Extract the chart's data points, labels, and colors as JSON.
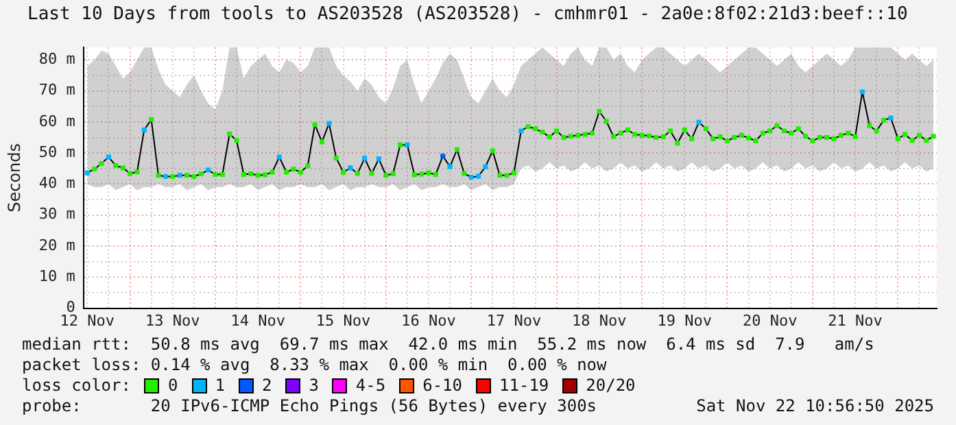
{
  "chart_data": {
    "type": "line",
    "title": "Last 10 Days from tools to AS203528 (AS203528) - cmhmr01 - 2a0e:8f02:21d3:beef::10",
    "ylabel": "Seconds",
    "legend_title": "loss color:",
    "legend": "bottom",
    "grid": true,
    "marker": "square",
    "annotations": [
      "median rtt:  50.8 ms avg  69.7 ms max  42.0 ms min  55.2 ms now  6.4 ms sd  7.9   am/s",
      "packet loss: 0.14 % avg  8.33 % max  0.00 % min  0.00 % now",
      "probe:       20 IPv6-ICMP Echo Pings (56 Bytes) every 300s",
      "Sat Nov 22 10:56:50 2025"
    ],
    "xlim": [
      "2025-11-12T10:56",
      "2025-11-22T10:56"
    ],
    "xticks": [
      {
        "value": "2025-11-12T12:00",
        "label": "12 Nov"
      },
      {
        "value": "2025-11-12T18:00",
        "label": null
      },
      {
        "value": "2025-11-13T00:00",
        "label": null
      },
      {
        "value": "2025-11-13T06:00",
        "label": null
      },
      {
        "value": "2025-11-13T12:00",
        "label": "13 Nov"
      },
      {
        "value": "2025-11-13T18:00",
        "label": null
      },
      {
        "value": "2025-11-14T00:00",
        "label": null
      },
      {
        "value": "2025-11-14T06:00",
        "label": null
      },
      {
        "value": "2025-11-14T12:00",
        "label": "14 Nov"
      },
      {
        "value": "2025-11-14T18:00",
        "label": null
      },
      {
        "value": "2025-11-15T00:00",
        "label": null
      },
      {
        "value": "2025-11-15T06:00",
        "label": null
      },
      {
        "value": "2025-11-15T12:00",
        "label": "15 Nov"
      },
      {
        "value": "2025-11-15T18:00",
        "label": null
      },
      {
        "value": "2025-11-16T00:00",
        "label": null
      },
      {
        "value": "2025-11-16T06:00",
        "label": null
      },
      {
        "value": "2025-11-16T12:00",
        "label": "16 Nov"
      },
      {
        "value": "2025-11-16T18:00",
        "label": null
      },
      {
        "value": "2025-11-17T00:00",
        "label": null
      },
      {
        "value": "2025-11-17T06:00",
        "label": null
      },
      {
        "value": "2025-11-17T12:00",
        "label": "17 Nov"
      },
      {
        "value": "2025-11-17T18:00",
        "label": null
      },
      {
        "value": "2025-11-18T00:00",
        "label": null
      },
      {
        "value": "2025-11-18T06:00",
        "label": null
      },
      {
        "value": "2025-11-18T12:00",
        "label": "18 Nov"
      },
      {
        "value": "2025-11-18T18:00",
        "label": null
      },
      {
        "value": "2025-11-19T00:00",
        "label": null
      },
      {
        "value": "2025-11-19T06:00",
        "label": null
      },
      {
        "value": "2025-11-19T12:00",
        "label": "19 Nov"
      },
      {
        "value": "2025-11-19T18:00",
        "label": null
      },
      {
        "value": "2025-11-20T00:00",
        "label": null
      },
      {
        "value": "2025-11-20T06:00",
        "label": null
      },
      {
        "value": "2025-11-20T12:00",
        "label": "20 Nov"
      },
      {
        "value": "2025-11-20T18:00",
        "label": null
      },
      {
        "value": "2025-11-21T00:00",
        "label": null
      },
      {
        "value": "2025-11-21T06:00",
        "label": null
      },
      {
        "value": "2025-11-21T12:00",
        "label": "21 Nov"
      },
      {
        "value": "2025-11-21T18:00",
        "label": null
      },
      {
        "value": "2025-11-22T00:00",
        "label": null
      },
      {
        "value": "2025-11-22T06:00",
        "label": null
      }
    ],
    "ylim": [
      0,
      84
    ],
    "yticks": [
      0,
      {
        "value": 5,
        "label": null
      },
      {
        "value": 10,
        "label": "10 m"
      },
      {
        "value": 15,
        "label": null
      },
      {
        "value": 20,
        "label": "20 m"
      },
      {
        "value": 25,
        "label": null
      },
      {
        "value": 30,
        "label": "30 m"
      },
      {
        "value": 35,
        "label": null
      },
      {
        "value": 40,
        "label": "40 m"
      },
      {
        "value": 45,
        "label": null
      },
      {
        "value": 50,
        "label": "50 m"
      },
      {
        "value": 55,
        "label": null
      },
      {
        "value": 60,
        "label": "60 m"
      },
      {
        "value": 65,
        "label": null
      },
      {
        "value": 70,
        "label": "70 m"
      },
      {
        "value": 75,
        "label": null
      },
      {
        "value": 80,
        "label": "80 m"
      }
    ],
    "x": [
      "2025-11-12T12:00",
      "2025-11-12T14:00",
      "2025-11-12T16:00",
      "2025-11-12T18:00",
      "2025-11-12T20:00",
      "2025-11-12T22:00",
      "2025-11-13T00:00",
      "2025-11-13T02:00",
      "2025-11-13T04:00",
      "2025-11-13T06:00",
      "2025-11-13T08:00",
      "2025-11-13T10:00",
      "2025-11-13T12:00",
      "2025-11-13T14:00",
      "2025-11-13T16:00",
      "2025-11-13T18:00",
      "2025-11-13T20:00",
      "2025-11-13T22:00",
      "2025-11-14T00:00",
      "2025-11-14T02:00",
      "2025-11-14T04:00",
      "2025-11-14T06:00",
      "2025-11-14T08:00",
      "2025-11-14T10:00",
      "2025-11-14T12:00",
      "2025-11-14T14:00",
      "2025-11-14T16:00",
      "2025-11-14T18:00",
      "2025-11-14T20:00",
      "2025-11-14T22:00",
      "2025-11-15T00:00",
      "2025-11-15T02:00",
      "2025-11-15T04:00",
      "2025-11-15T06:00",
      "2025-11-15T08:00",
      "2025-11-15T10:00",
      "2025-11-15T12:00",
      "2025-11-15T14:00",
      "2025-11-15T16:00",
      "2025-11-15T18:00",
      "2025-11-15T20:00",
      "2025-11-15T22:00",
      "2025-11-16T00:00",
      "2025-11-16T02:00",
      "2025-11-16T04:00",
      "2025-11-16T06:00",
      "2025-11-16T08:00",
      "2025-11-16T10:00",
      "2025-11-16T12:00",
      "2025-11-16T14:00",
      "2025-11-16T16:00",
      "2025-11-16T18:00",
      "2025-11-16T20:00",
      "2025-11-16T22:00",
      "2025-11-17T00:00",
      "2025-11-17T02:00",
      "2025-11-17T04:00",
      "2025-11-17T06:00",
      "2025-11-17T08:00",
      "2025-11-17T10:00",
      "2025-11-17T12:00",
      "2025-11-17T14:00",
      "2025-11-17T16:00",
      "2025-11-17T18:00",
      "2025-11-17T20:00",
      "2025-11-17T22:00",
      "2025-11-18T00:00",
      "2025-11-18T02:00",
      "2025-11-18T04:00",
      "2025-11-18T06:00",
      "2025-11-18T08:00",
      "2025-11-18T10:00",
      "2025-11-18T12:00",
      "2025-11-18T14:00",
      "2025-11-18T16:00",
      "2025-11-18T18:00",
      "2025-11-18T20:00",
      "2025-11-18T22:00",
      "2025-11-19T00:00",
      "2025-11-19T02:00",
      "2025-11-19T04:00",
      "2025-11-19T06:00",
      "2025-11-19T08:00",
      "2025-11-19T10:00",
      "2025-11-19T12:00",
      "2025-11-19T14:00",
      "2025-11-19T16:00",
      "2025-11-19T18:00",
      "2025-11-19T20:00",
      "2025-11-19T22:00",
      "2025-11-20T00:00",
      "2025-11-20T02:00",
      "2025-11-20T04:00",
      "2025-11-20T06:00",
      "2025-11-20T08:00",
      "2025-11-20T10:00",
      "2025-11-20T12:00",
      "2025-11-20T14:00",
      "2025-11-20T16:00",
      "2025-11-20T18:00",
      "2025-11-20T20:00",
      "2025-11-20T22:00",
      "2025-11-21T00:00",
      "2025-11-21T02:00",
      "2025-11-21T04:00",
      "2025-11-21T06:00",
      "2025-11-21T08:00",
      "2025-11-21T10:00",
      "2025-11-21T12:00",
      "2025-11-21T14:00",
      "2025-11-21T16:00",
      "2025-11-21T18:00",
      "2025-11-21T20:00",
      "2025-11-21T22:00",
      "2025-11-22T00:00",
      "2025-11-22T02:00",
      "2025-11-22T04:00",
      "2025-11-22T06:00",
      "2025-11-22T08:00",
      "2025-11-22T10:00"
    ],
    "series": [
      {
        "color": "#000000",
        "marker": "none",
        "values": [
          43.6,
          44.8,
          46.6,
          48.7,
          45.9,
          45.2,
          43.4,
          43.9,
          57.4,
          60.8,
          42.8,
          42.4,
          42.4,
          42.8,
          42.8,
          42.4,
          43.3,
          44.5,
          43.1,
          43.1,
          56.1,
          54.0,
          43.1,
          43.3,
          42.8,
          43.0,
          43.8,
          48.7,
          43.8,
          44.8,
          43.8,
          45.9,
          59.1,
          53.6,
          59.5,
          48.4,
          43.8,
          45.2,
          43.4,
          48.3,
          43.4,
          48.1,
          42.8,
          43.3,
          52.6,
          52.6,
          43.0,
          43.2,
          43.6,
          43.1,
          49.0,
          45.6,
          51.1,
          43.4,
          42.2,
          42.5,
          45.6,
          50.7,
          42.8,
          42.8,
          43.6,
          57.1,
          58.5,
          57.8,
          56.7,
          55.2,
          57.1,
          55.0,
          55.4,
          55.7,
          56.0,
          56.4,
          63.4,
          60.2,
          55.3,
          56.4,
          57.4,
          56.0,
          55.7,
          55.5,
          55.0,
          55.2,
          57.1,
          53.2,
          57.4,
          54.6,
          59.9,
          57.8,
          54.6,
          55.2,
          53.9,
          55.0,
          55.7,
          54.8,
          53.9,
          56.4,
          57.1,
          58.8,
          57.1,
          56.4,
          57.8,
          55.4,
          53.9,
          55.0,
          55.0,
          54.6,
          55.7,
          56.4,
          55.3,
          69.7,
          58.8,
          57.1,
          60.6,
          61.3,
          54.6,
          56.0,
          54.0,
          55.7,
          54.0,
          55.4
        ],
        "lower": [
          40,
          39,
          39,
          40,
          38,
          39,
          40,
          38,
          39,
          39,
          40,
          39,
          39,
          40,
          38,
          39,
          40,
          38,
          39,
          39,
          40,
          39,
          39,
          40,
          38,
          39,
          40,
          38,
          39,
          39,
          40,
          39,
          39,
          40,
          38,
          39,
          40,
          38,
          39,
          39,
          40,
          39,
          39,
          40,
          38,
          39,
          40,
          38,
          39,
          39,
          40,
          39,
          39,
          40,
          38,
          39,
          40,
          38,
          39,
          39,
          40,
          45,
          46,
          44,
          45,
          47,
          45,
          46,
          44,
          45,
          47,
          45,
          46,
          44,
          45,
          47,
          45,
          46,
          44,
          45,
          47,
          45,
          46,
          44,
          45,
          47,
          45,
          46,
          44,
          45,
          47,
          45,
          46,
          44,
          45,
          47,
          45,
          46,
          44,
          45,
          47,
          45,
          46,
          44,
          45,
          47,
          45,
          46,
          44,
          45,
          47,
          45,
          46,
          44,
          45,
          47,
          45,
          46,
          44,
          45
        ],
        "upper": [
          78,
          80,
          83,
          82,
          78,
          74,
          76,
          80,
          84,
          84,
          77,
          72,
          70,
          68,
          72,
          75,
          70,
          66,
          64,
          70,
          84,
          84,
          74,
          78,
          80,
          82,
          78,
          76,
          80,
          79,
          76,
          78,
          84,
          84,
          84,
          78,
          75,
          73,
          70,
          74,
          72,
          68,
          66,
          71,
          78,
          80,
          72,
          66,
          70,
          74,
          79,
          82,
          80,
          74,
          68,
          66,
          70,
          74,
          70,
          68,
          72,
          78,
          80,
          82,
          84,
          82,
          80,
          78,
          82,
          84,
          80,
          78,
          84,
          84,
          80,
          82,
          78,
          76,
          80,
          82,
          84,
          84,
          82,
          80,
          78,
          80,
          82,
          80,
          78,
          76,
          78,
          80,
          82,
          84,
          84,
          82,
          80,
          78,
          80,
          82,
          78,
          76,
          78,
          80,
          82,
          80,
          78,
          80,
          84,
          84,
          84,
          84,
          84,
          84,
          82,
          80,
          82,
          80,
          78,
          80
        ]
      },
      {
        "type": "scatter",
        "name": "0",
        "color": "#22ee00",
        "values": [
          null,
          44.8,
          46.6,
          null,
          45.9,
          45.2,
          43.4,
          43.9,
          null,
          60.8,
          42.8,
          null,
          42.4,
          null,
          42.8,
          42.4,
          43.3,
          null,
          43.1,
          43.1,
          56.1,
          54.0,
          43.1,
          43.3,
          42.8,
          43.0,
          43.8,
          null,
          43.8,
          44.8,
          43.8,
          45.9,
          59.1,
          53.6,
          null,
          48.4,
          43.8,
          null,
          43.4,
          null,
          43.4,
          null,
          42.8,
          43.3,
          52.6,
          null,
          43.0,
          43.2,
          43.6,
          43.1,
          null,
          null,
          51.1,
          43.4,
          null,
          null,
          null,
          50.7,
          42.8,
          42.8,
          43.6,
          null,
          58.5,
          57.8,
          56.7,
          55.2,
          57.1,
          55.0,
          55.4,
          55.7,
          56.0,
          56.4,
          63.4,
          60.2,
          55.3,
          56.4,
          57.4,
          56.0,
          55.7,
          55.5,
          55.0,
          55.2,
          57.1,
          53.2,
          57.4,
          54.6,
          null,
          57.8,
          54.6,
          55.2,
          53.9,
          55.0,
          55.7,
          54.8,
          53.9,
          56.4,
          57.1,
          58.8,
          57.1,
          56.4,
          57.8,
          55.4,
          53.9,
          55.0,
          55.0,
          54.6,
          55.7,
          56.4,
          55.3,
          null,
          58.8,
          57.1,
          60.6,
          null,
          54.6,
          56.0,
          54.0,
          55.7,
          54.0,
          55.4
        ]
      },
      {
        "type": "scatter",
        "name": "1",
        "color": "#00b4ff",
        "x": [
          "2025-11-12T12:00",
          "2025-11-12T18:00",
          "2025-11-13T04:00",
          "2025-11-13T10:00",
          "2025-11-13T14:00",
          "2025-11-13T22:00",
          "2025-11-14T18:00",
          "2025-11-15T08:00",
          "2025-11-15T14:00",
          "2025-11-15T18:00",
          "2025-11-15T22:00",
          "2025-11-16T06:00",
          "2025-11-16T18:00",
          "2025-11-17T00:00",
          "2025-11-17T02:00",
          "2025-11-17T04:00",
          "2025-11-17T14:00",
          "2025-11-19T16:00",
          "2025-11-21T14:00",
          "2025-11-21T22:00"
        ],
        "values": [
          43.6,
          48.7,
          57.4,
          42.4,
          42.8,
          44.5,
          48.7,
          59.5,
          45.2,
          48.3,
          48.1,
          52.6,
          45.6,
          42.2,
          42.5,
          45.6,
          57.1,
          59.9,
          69.7,
          61.3
        ]
      },
      {
        "type": "scatter",
        "name": "2",
        "color": "#0059ff",
        "x": [
          "2025-11-16T16:00"
        ],
        "values": [
          49.0
        ]
      },
      {
        "type": "scatter",
        "name": "3",
        "color": "#7e00ff",
        "values": [
          null,
          null,
          null,
          null,
          null,
          null,
          null,
          null,
          null,
          null,
          null,
          null,
          null,
          null,
          null,
          null,
          null,
          null,
          null,
          null,
          null,
          null,
          null,
          null,
          null,
          null,
          null,
          null,
          null,
          null,
          null,
          null,
          null,
          null,
          null,
          null,
          null,
          null,
          null,
          null,
          null,
          null,
          null,
          null,
          null,
          null,
          null,
          null,
          null,
          null,
          null,
          null,
          null,
          null,
          null,
          null,
          null,
          null,
          null,
          null,
          null,
          null,
          null,
          null,
          null,
          null,
          null,
          null,
          null,
          null,
          null,
          null,
          null,
          null,
          null,
          null,
          null,
          null,
          null,
          null,
          null,
          null,
          null,
          null,
          null,
          null,
          null,
          null,
          null,
          null,
          null,
          null,
          null,
          null,
          null,
          null,
          null,
          null,
          null,
          null,
          null,
          null,
          null,
          null,
          null,
          null,
          null,
          null,
          null,
          null,
          null,
          null,
          null,
          null,
          null,
          null,
          null,
          null,
          null,
          null
        ]
      },
      {
        "type": "scatter",
        "name": "4-5",
        "color": "#ff00ff",
        "values": [
          null,
          null,
          null,
          null,
          null,
          null,
          null,
          null,
          null,
          null,
          null,
          null,
          null,
          null,
          null,
          null,
          null,
          null,
          null,
          null,
          null,
          null,
          null,
          null,
          null,
          null,
          null,
          null,
          null,
          null,
          null,
          null,
          null,
          null,
          null,
          null,
          null,
          null,
          null,
          null,
          null,
          null,
          null,
          null,
          null,
          null,
          null,
          null,
          null,
          null,
          null,
          null,
          null,
          null,
          null,
          null,
          null,
          null,
          null,
          null,
          null,
          null,
          null,
          null,
          null,
          null,
          null,
          null,
          null,
          null,
          null,
          null,
          null,
          null,
          null,
          null,
          null,
          null,
          null,
          null,
          null,
          null,
          null,
          null,
          null,
          null,
          null,
          null,
          null,
          null,
          null,
          null,
          null,
          null,
          null,
          null,
          null,
          null,
          null,
          null,
          null,
          null,
          null,
          null,
          null,
          null,
          null,
          null,
          null,
          null,
          null,
          null,
          null,
          null,
          null,
          null,
          null,
          null,
          null,
          null
        ]
      },
      {
        "type": "scatter",
        "name": "6-10",
        "color": "#ff5500",
        "values": [
          null,
          null,
          null,
          null,
          null,
          null,
          null,
          null,
          null,
          null,
          null,
          null,
          null,
          null,
          null,
          null,
          null,
          null,
          null,
          null,
          null,
          null,
          null,
          null,
          null,
          null,
          null,
          null,
          null,
          null,
          null,
          null,
          null,
          null,
          null,
          null,
          null,
          null,
          null,
          null,
          null,
          null,
          null,
          null,
          null,
          null,
          null,
          null,
          null,
          null,
          null,
          null,
          null,
          null,
          null,
          null,
          null,
          null,
          null,
          null,
          null,
          null,
          null,
          null,
          null,
          null,
          null,
          null,
          null,
          null,
          null,
          null,
          null,
          null,
          null,
          null,
          null,
          null,
          null,
          null,
          null,
          null,
          null,
          null,
          null,
          null,
          null,
          null,
          null,
          null,
          null,
          null,
          null,
          null,
          null,
          null,
          null,
          null,
          null,
          null,
          null,
          null,
          null,
          null,
          null,
          null,
          null,
          null,
          null,
          null,
          null,
          null,
          null,
          null,
          null,
          null,
          null,
          null,
          null,
          null
        ]
      },
      {
        "type": "scatter",
        "name": "11-19",
        "color": "#ff0000",
        "values": [
          null,
          null,
          null,
          null,
          null,
          null,
          null,
          null,
          null,
          null,
          null,
          null,
          null,
          null,
          null,
          null,
          null,
          null,
          null,
          null,
          null,
          null,
          null,
          null,
          null,
          null,
          null,
          null,
          null,
          null,
          null,
          null,
          null,
          null,
          null,
          null,
          null,
          null,
          null,
          null,
          null,
          null,
          null,
          null,
          null,
          null,
          null,
          null,
          null,
          null,
          null,
          null,
          null,
          null,
          null,
          null,
          null,
          null,
          null,
          null,
          null,
          null,
          null,
          null,
          null,
          null,
          null,
          null,
          null,
          null,
          null,
          null,
          null,
          null,
          null,
          null,
          null,
          null,
          null,
          null,
          null,
          null,
          null,
          null,
          null,
          null,
          null,
          null,
          null,
          null,
          null,
          null,
          null,
          null,
          null,
          null,
          null,
          null,
          null,
          null,
          null,
          null,
          null,
          null,
          null,
          null,
          null,
          null,
          null,
          null,
          null,
          null,
          null,
          null,
          null,
          null,
          null,
          null,
          null,
          null
        ]
      },
      {
        "type": "scatter",
        "name": "20/20",
        "color": "#a10000",
        "values": [
          null,
          null,
          null,
          null,
          null,
          null,
          null,
          null,
          null,
          null,
          null,
          null,
          null,
          null,
          null,
          null,
          null,
          null,
          null,
          null,
          null,
          null,
          null,
          null,
          null,
          null,
          null,
          null,
          null,
          null,
          null,
          null,
          null,
          null,
          null,
          null,
          null,
          null,
          null,
          null,
          null,
          null,
          null,
          null,
          null,
          null,
          null,
          null,
          null,
          null,
          null,
          null,
          null,
          null,
          null,
          null,
          null,
          null,
          null,
          null,
          null,
          null,
          null,
          null,
          null,
          null,
          null,
          null,
          null,
          null,
          null,
          null,
          null,
          null,
          null,
          null,
          null,
          null,
          null,
          null,
          null,
          null,
          null,
          null,
          null,
          null,
          null,
          null,
          null,
          null,
          null,
          null,
          null,
          null,
          null,
          null,
          null,
          null,
          null,
          null,
          null,
          null,
          null,
          null,
          null,
          null,
          null,
          null,
          null,
          null,
          null,
          null,
          null,
          null,
          null,
          null,
          null,
          null,
          null,
          null
        ]
      }
    ]
  }
}
